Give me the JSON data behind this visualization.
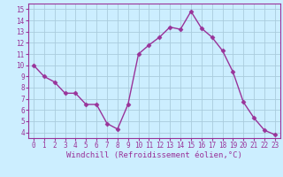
{
  "x": [
    0,
    1,
    2,
    3,
    4,
    5,
    6,
    7,
    8,
    9,
    10,
    11,
    12,
    13,
    14,
    15,
    16,
    17,
    18,
    19,
    20,
    21,
    22,
    23
  ],
  "y": [
    10,
    9,
    8.5,
    7.5,
    7.5,
    6.5,
    6.5,
    4.8,
    4.3,
    6.5,
    11.0,
    11.8,
    12.5,
    13.4,
    13.2,
    14.8,
    13.3,
    12.5,
    11.3,
    9.4,
    6.7,
    5.3,
    4.2,
    3.8
  ],
  "line_color": "#993399",
  "marker": "D",
  "marker_size": 2.5,
  "bg_color": "#cceeff",
  "grid_color": "#aaccdd",
  "xlabel": "Windchill (Refroidissement éolien,°C)",
  "ylim": [
    3.5,
    15.5
  ],
  "xlim": [
    -0.5,
    23.5
  ],
  "yticks": [
    4,
    5,
    6,
    7,
    8,
    9,
    10,
    11,
    12,
    13,
    14,
    15
  ],
  "xticks": [
    0,
    1,
    2,
    3,
    4,
    5,
    6,
    7,
    8,
    9,
    10,
    11,
    12,
    13,
    14,
    15,
    16,
    17,
    18,
    19,
    20,
    21,
    22,
    23
  ],
  "tick_color": "#993399",
  "label_color": "#993399",
  "font_family": "monospace",
  "tick_fontsize": 5.5,
  "xlabel_fontsize": 6.5,
  "linewidth": 1.0
}
